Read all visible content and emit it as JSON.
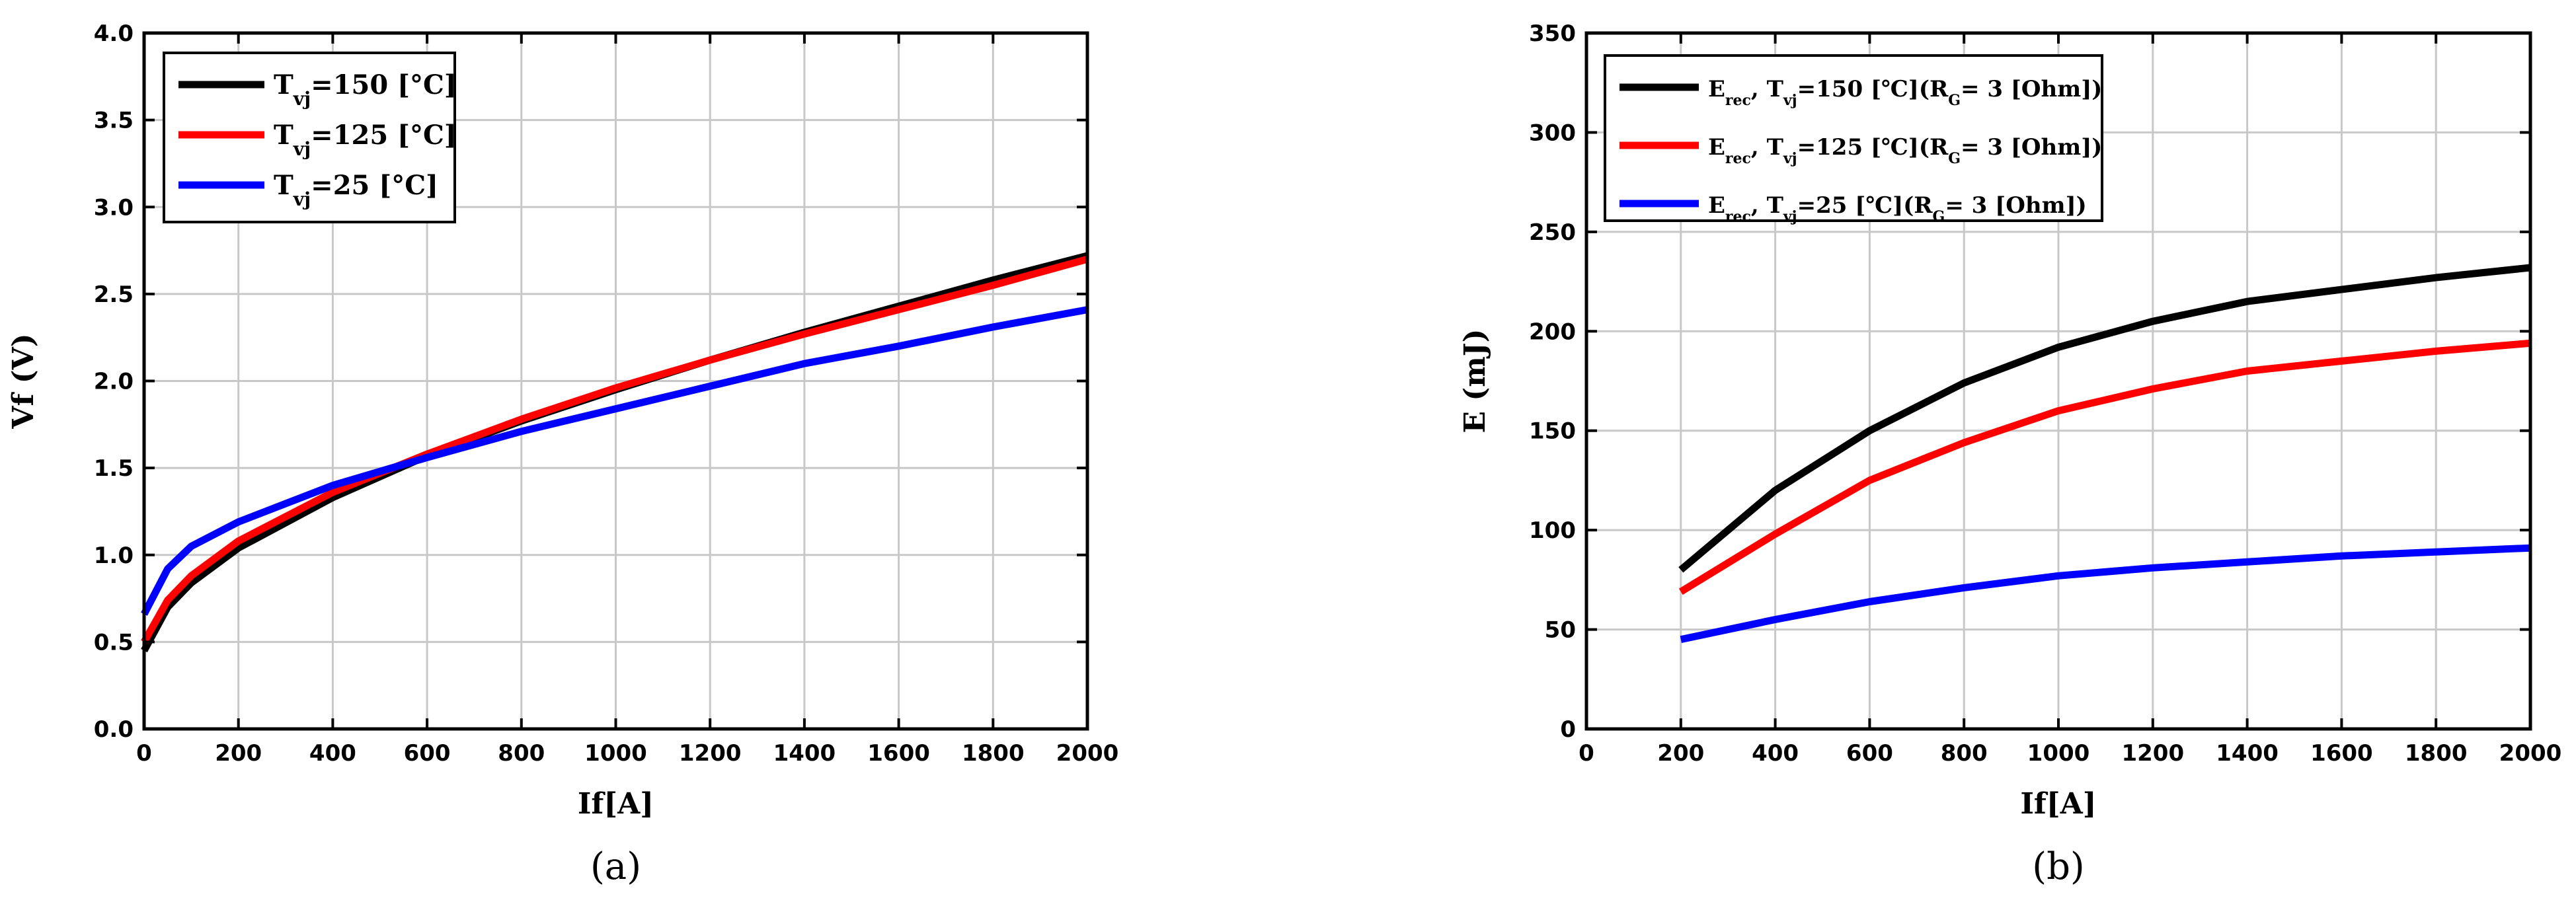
{
  "chart_data": [
    {
      "type": "line",
      "caption": "(a)",
      "xlabel": "If[A]",
      "ylabel": "Vf (V)",
      "xlim": [
        0,
        2000
      ],
      "ylim": [
        0,
        4.0
      ],
      "xticks": [
        0,
        200,
        400,
        600,
        800,
        1000,
        1200,
        1400,
        1600,
        1800,
        2000
      ],
      "xtick_labels": [
        "0",
        "200",
        "400",
        "600",
        "800",
        "1000",
        "1200",
        "1400",
        "1600",
        "1800",
        "2000"
      ],
      "yticks": [
        0,
        0.5,
        1.0,
        1.5,
        2.0,
        2.5,
        3.0,
        3.5,
        4.0
      ],
      "ytick_labels": [
        "0.0",
        "0.5",
        "1.0",
        "1.5",
        "2.0",
        "2.5",
        "3.0",
        "3.5",
        "4.0"
      ],
      "grid": true,
      "legend_position": "top-left",
      "series": [
        {
          "name": "Tvj=150 [℃]",
          "legend_main": "T",
          "legend_sub": "vj",
          "legend_rest": "=150 [°C]",
          "color": "#000000",
          "x": [
            0,
            50,
            100,
            200,
            400,
            600,
            800,
            1000,
            1200,
            1400,
            1600,
            1800,
            2000
          ],
          "y": [
            0.45,
            0.7,
            0.84,
            1.04,
            1.33,
            1.57,
            1.77,
            1.95,
            2.12,
            2.28,
            2.43,
            2.58,
            2.72
          ]
        },
        {
          "name": "Tvj=125 [℃]",
          "legend_main": "T",
          "legend_sub": "vj",
          "legend_rest": "=125 [°C]",
          "color": "#ff0000",
          "x": [
            0,
            50,
            100,
            200,
            400,
            600,
            800,
            1000,
            1200,
            1400,
            1600,
            1800,
            2000
          ],
          "y": [
            0.5,
            0.74,
            0.88,
            1.08,
            1.36,
            1.58,
            1.78,
            1.96,
            2.12,
            2.27,
            2.41,
            2.55,
            2.7
          ]
        },
        {
          "name": "Tvj=25 [℃]",
          "legend_main": "T",
          "legend_sub": "vj",
          "legend_rest": "=25   [°C]",
          "color": "#0000ff",
          "x": [
            0,
            50,
            100,
            200,
            400,
            600,
            800,
            1000,
            1200,
            1400,
            1600,
            1800,
            2000
          ],
          "y": [
            0.66,
            0.92,
            1.05,
            1.19,
            1.4,
            1.56,
            1.71,
            1.84,
            1.97,
            2.1,
            2.2,
            2.31,
            2.41
          ]
        }
      ]
    },
    {
      "type": "line",
      "caption": "(b)",
      "xlabel": "If[A]",
      "ylabel": "E (mJ)",
      "xlim": [
        0,
        2000
      ],
      "ylim": [
        0,
        350
      ],
      "xticks": [
        0,
        200,
        400,
        600,
        800,
        1000,
        1200,
        1400,
        1600,
        1800,
        2000
      ],
      "xtick_labels": [
        "0",
        "200",
        "400",
        "600",
        "800",
        "1000",
        "1200",
        "1400",
        "1600",
        "1800",
        "2000"
      ],
      "yticks": [
        0,
        50,
        100,
        150,
        200,
        250,
        300,
        350
      ],
      "ytick_labels": [
        "0",
        "50",
        "100",
        "150",
        "200",
        "250",
        "300",
        "350"
      ],
      "grid": true,
      "legend_position": "top-left",
      "series": [
        {
          "name": "Erec,Tvj=150 [℃](RG= 3 [Ohm])",
          "legend_parts": [
            [
              "E",
              ""
            ],
            [
              "rec",
              "sub"
            ],
            [
              ", T",
              ""
            ],
            [
              "vj",
              "sub"
            ],
            [
              "=150 [℃](R",
              ""
            ],
            [
              "G",
              "sub"
            ],
            [
              "= 3 [Ohm])",
              ""
            ]
          ],
          "color": "#000000",
          "x": [
            200,
            400,
            600,
            800,
            1000,
            1200,
            1400,
            1600,
            1800,
            2000
          ],
          "y": [
            80,
            120,
            150,
            174,
            192,
            205,
            215,
            221,
            227,
            232
          ]
        },
        {
          "name": "Erec,Tvj=125 [℃](RG= 3 [Ohm])",
          "legend_parts": [
            [
              "E",
              ""
            ],
            [
              "rec",
              "sub"
            ],
            [
              ", T",
              ""
            ],
            [
              "vj",
              "sub"
            ],
            [
              "=125 [℃](R",
              ""
            ],
            [
              "G",
              "sub"
            ],
            [
              "= 3 [Ohm])",
              ""
            ]
          ],
          "color": "#ff0000",
          "x": [
            200,
            400,
            600,
            800,
            1000,
            1200,
            1400,
            1600,
            1800,
            2000
          ],
          "y": [
            69,
            98,
            125,
            144,
            160,
            171,
            180,
            185,
            190,
            194
          ]
        },
        {
          "name": "Erec,Tvj=25 [℃](RG= 3 [Ohm])",
          "legend_parts": [
            [
              "E",
              ""
            ],
            [
              "rec",
              "sub"
            ],
            [
              ", T",
              ""
            ],
            [
              "vj",
              "sub"
            ],
            [
              "=25   [℃](R",
              ""
            ],
            [
              "G",
              "sub"
            ],
            [
              "= 3 [Ohm])",
              ""
            ]
          ],
          "color": "#0000ff",
          "x": [
            200,
            400,
            600,
            800,
            1000,
            1200,
            1400,
            1600,
            1800,
            2000
          ],
          "y": [
            45,
            55,
            64,
            71,
            77,
            81,
            84,
            87,
            89,
            91
          ]
        }
      ]
    }
  ]
}
